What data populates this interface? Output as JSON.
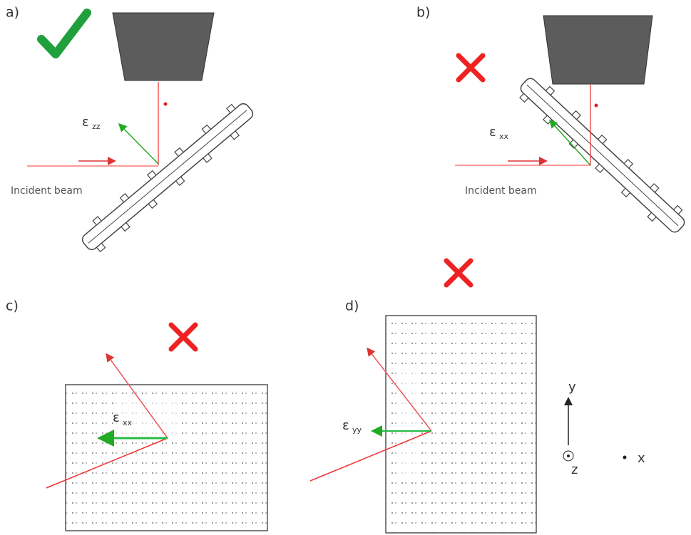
{
  "panels": [
    {
      "label": "a)",
      "strain": {
        "symbol": "ε",
        "subscript": "zz"
      },
      "beam_label": "Incident beam"
    },
    {
      "label": "b)",
      "strain": {
        "symbol": "ε",
        "subscript": "xx"
      },
      "beam_label": "Incident beam"
    },
    {
      "label": "c)",
      "strain": {
        "symbol": "ε",
        "subscript": "xx"
      }
    },
    {
      "label": "d)",
      "strain": {
        "symbol": "ε",
        "subscript": "yy"
      }
    }
  ],
  "axes": {
    "y": "y",
    "z": "z",
    "x": "x"
  }
}
